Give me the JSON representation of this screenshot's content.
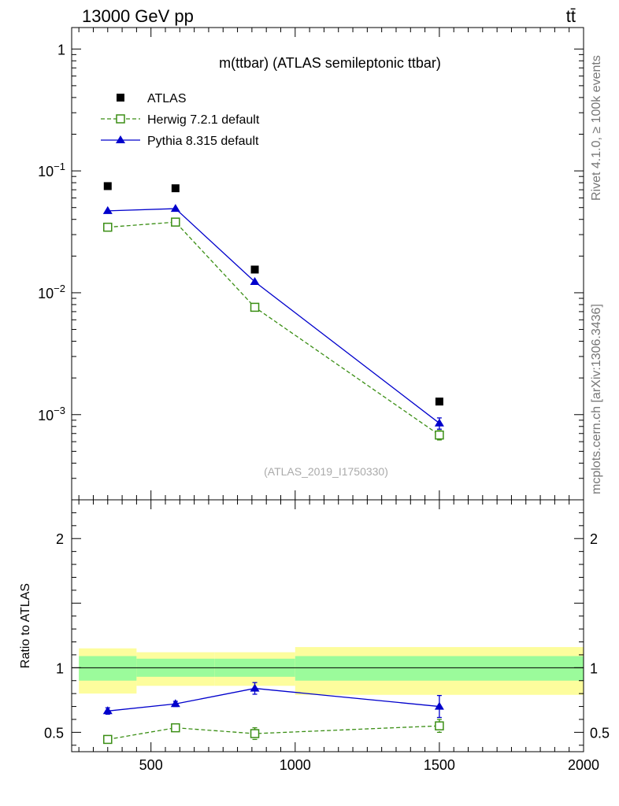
{
  "header": {
    "energy_label": "13000 GeV pp",
    "process_label": "tt̄"
  },
  "side_labels": {
    "rivet": "Rivet 4.1.0, ≥ 100k events",
    "source": "mcplots.cern.ch [arXiv:1306.3436]"
  },
  "chart_data": [
    {
      "type": "scatter",
      "panel": "main",
      "title": "m(ttbar) (ATLAS semileptonic ttbar)",
      "watermark": "(ATLAS_2019_I1750330)",
      "yscale": "log",
      "xlim": [
        225,
        2000
      ],
      "ylim": [
        0.0002,
        1.5
      ],
      "ytick_labels": [
        {
          "value": 1,
          "label": "1"
        },
        {
          "value": 0.1,
          "label": "10^-1"
        },
        {
          "value": 0.01,
          "label": "10^-2"
        },
        {
          "value": 0.001,
          "label": "10^-3"
        }
      ],
      "legend_position": "top-left",
      "series": [
        {
          "name": "ATLAS",
          "style": "data",
          "color": "#000000",
          "marker": "square",
          "x": [
            350,
            585,
            860,
            1500
          ],
          "y": [
            0.075,
            0.072,
            0.0155,
            0.00128
          ],
          "yerr": [
            0,
            0,
            0,
            0
          ]
        },
        {
          "name": "Herwig 7.2.1 default",
          "style": "dashed",
          "color": "#3a8e14",
          "marker": "open-square",
          "x": [
            350,
            585,
            860,
            1500
          ],
          "y": [
            0.0345,
            0.038,
            0.0076,
            0.00068
          ],
          "yerr": [
            0,
            0,
            0,
            6e-05
          ]
        },
        {
          "name": "Pythia 8.315 default",
          "style": "solid",
          "color": "#0000cc",
          "marker": "triangle",
          "x": [
            350,
            585,
            860,
            1500
          ],
          "y": [
            0.047,
            0.049,
            0.0123,
            0.00085
          ],
          "yerr": [
            0,
            0,
            0,
            9e-05
          ]
        }
      ]
    },
    {
      "type": "scatter",
      "panel": "ratio",
      "ylabel": "Ratio to ATLAS",
      "xlim": [
        225,
        2000
      ],
      "ylim": [
        0.35,
        2.3
      ],
      "ytick_labels": [
        {
          "value": 0.5,
          "label": "0.5"
        },
        {
          "value": 1,
          "label": "1"
        },
        {
          "value": 2,
          "label": "2"
        }
      ],
      "xtick_labels": [
        {
          "value": 500,
          "label": "500"
        },
        {
          "value": 1000,
          "label": "1000"
        },
        {
          "value": 1500,
          "label": "1500"
        },
        {
          "value": 2000,
          "label": "2000"
        }
      ],
      "bands": [
        {
          "x0": 250,
          "x1": 450,
          "green": [
            0.9,
            1.09
          ],
          "yellow": [
            0.8,
            1.15
          ]
        },
        {
          "x0": 450,
          "x1": 720,
          "green": [
            0.93,
            1.07
          ],
          "yellow": [
            0.86,
            1.12
          ]
        },
        {
          "x0": 720,
          "x1": 1000,
          "green": [
            0.93,
            1.07
          ],
          "yellow": [
            0.86,
            1.12
          ]
        },
        {
          "x0": 1000,
          "x1": 2000,
          "green": [
            0.9,
            1.09
          ],
          "yellow": [
            0.79,
            1.16
          ]
        }
      ],
      "series": [
        {
          "name": "Herwig 7.2.1 default",
          "style": "dashed",
          "color": "#3a8e14",
          "marker": "open-square",
          "x": [
            350,
            585,
            860,
            1500
          ],
          "y": [
            0.445,
            0.535,
            0.49,
            0.55
          ],
          "yerr": [
            0.02,
            0.015,
            0.045,
            0.05
          ]
        },
        {
          "name": "Pythia 8.315 default",
          "style": "solid",
          "color": "#0000cc",
          "marker": "triangle",
          "x": [
            350,
            585,
            860,
            1500
          ],
          "y": [
            0.665,
            0.72,
            0.84,
            0.7
          ],
          "yerr": [
            0.025,
            0.02,
            0.045,
            0.085
          ]
        }
      ]
    }
  ],
  "colors": {
    "band_green": "#9bfb9b",
    "band_yellow": "#fdfd9d"
  }
}
